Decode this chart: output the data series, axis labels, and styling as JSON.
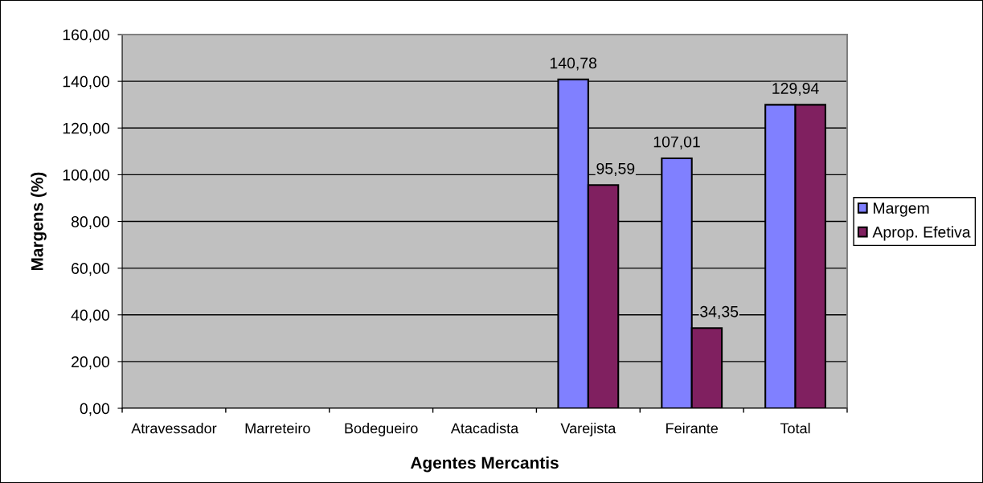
{
  "chart_data": {
    "type": "bar",
    "xlabel": "Agentes Mercantis",
    "ylabel": "Margens (%)",
    "categories": [
      "Atravessador",
      "Marreteiro",
      "Bodegueiro",
      "Atacadista",
      "Varejista",
      "Feirante",
      "Total"
    ],
    "series": [
      {
        "name": "Margem",
        "color": "#8080ff",
        "values": [
          null,
          null,
          null,
          null,
          140.78,
          107.01,
          129.94
        ],
        "value_labels": [
          null,
          null,
          null,
          null,
          "140,78",
          "107,01",
          null
        ]
      },
      {
        "name": "Aprop. Efetiva",
        "color": "#802060",
        "values": [
          null,
          null,
          null,
          null,
          95.59,
          34.35,
          129.94
        ],
        "value_labels": [
          null,
          null,
          null,
          null,
          "95,59",
          "34,35",
          null
        ]
      }
    ],
    "annotations": [
      {
        "text": "129,94",
        "x": "Total",
        "y": 129.94
      }
    ],
    "ylim": [
      0,
      160
    ],
    "yticks": [
      {
        "value": 0,
        "label": "0,00"
      },
      {
        "value": 20,
        "label": "20,00"
      },
      {
        "value": 40,
        "label": "40,00"
      },
      {
        "value": 60,
        "label": "60,00"
      },
      {
        "value": 80,
        "label": "80,00"
      },
      {
        "value": 100,
        "label": "100,00"
      },
      {
        "value": 120,
        "label": "120,00"
      },
      {
        "value": 140,
        "label": "140,00"
      },
      {
        "value": 160,
        "label": "160,00"
      }
    ],
    "grid": "y",
    "legend": "right"
  }
}
